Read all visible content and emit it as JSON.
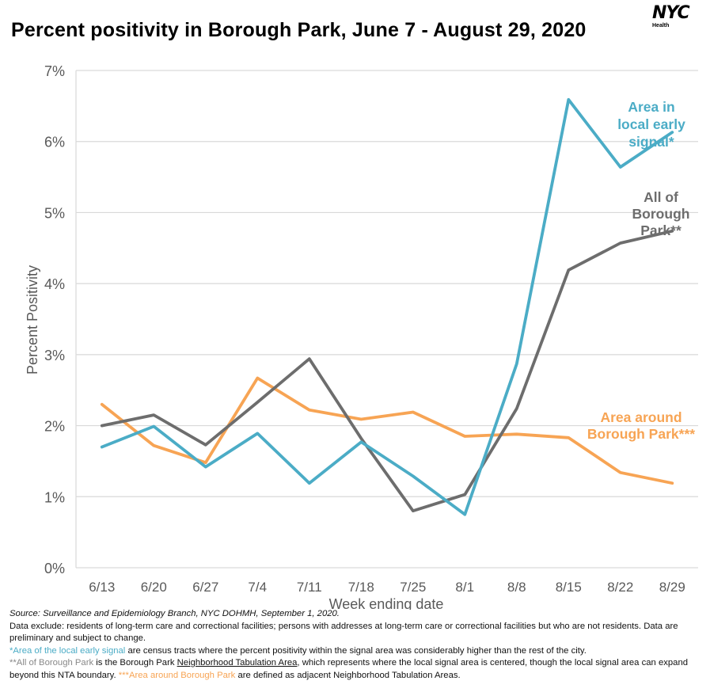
{
  "title": "Percent positivity in Borough Park, June 7 - August 29, 2020",
  "logo": {
    "word": "NYC",
    "sub": "Health"
  },
  "chart_data": {
    "type": "line",
    "title": "Percent positivity in Borough Park, June 7 - August 29, 2020",
    "xlabel": "Week ending date",
    "ylabel": "Percent Positivity",
    "categories": [
      "6/13",
      "6/20",
      "6/27",
      "7/4",
      "7/11",
      "7/18",
      "7/25",
      "8/1",
      "8/8",
      "8/15",
      "8/22",
      "8/29"
    ],
    "ylim": [
      0,
      7
    ],
    "yticks": [
      0,
      1,
      2,
      3,
      4,
      5,
      6,
      7
    ],
    "ytick_labels": [
      "0%",
      "1%",
      "2%",
      "3%",
      "4%",
      "5%",
      "6%",
      "7%"
    ],
    "grid": true,
    "series": [
      {
        "name": "Area in local early signal*",
        "label_lines": [
          "Area in",
          "local early",
          "signal*"
        ],
        "color": "#4BACC6",
        "values": [
          1.7,
          1.99,
          1.42,
          1.89,
          1.19,
          1.77,
          1.29,
          0.75,
          2.87,
          6.59,
          5.64,
          6.13
        ]
      },
      {
        "name": "All of Borough Park**",
        "label_lines": [
          "All of",
          "Borough",
          "Park**"
        ],
        "color": "#6D6D6D",
        "values": [
          2.0,
          2.15,
          1.73,
          2.33,
          2.94,
          1.82,
          0.8,
          1.03,
          2.24,
          4.19,
          4.57,
          4.74
        ]
      },
      {
        "name": "Area around Borough Park***",
        "label_lines": [
          "Area around",
          "Borough Park***"
        ],
        "color": "#F7A454",
        "values": [
          2.3,
          1.72,
          1.48,
          2.67,
          2.22,
          2.09,
          2.19,
          1.85,
          1.88,
          1.83,
          1.34,
          1.19
        ]
      }
    ]
  },
  "notes": {
    "source": "Source: Surveillance and Epidemiology Branch, NYC DOHMH, September 1, 2020.",
    "exclude": "Data exclude: residents of long-term care and correctional facilities; persons with addresses at long-term care or correctional facilities but who are not residents. Data are preliminary and subject to change.",
    "signal_highlight": "*Area of the local early signal",
    "signal_rest": " are census tracts where the percent positivity within the signal area was considerably higher than the rest of the city.",
    "bp_highlight": "**All of Borough Park",
    "bp_mid": " is the Borough Park ",
    "bp_link": "Neighborhood Tabulation Area",
    "bp_rest": ", which represents where the local signal area is centered, though the local signal area can expand beyond this NTA boundary. ",
    "around_highlight": "***Area around Borough Park",
    "around_rest": " are defined as adjacent Neighborhood Tabulation Areas."
  }
}
